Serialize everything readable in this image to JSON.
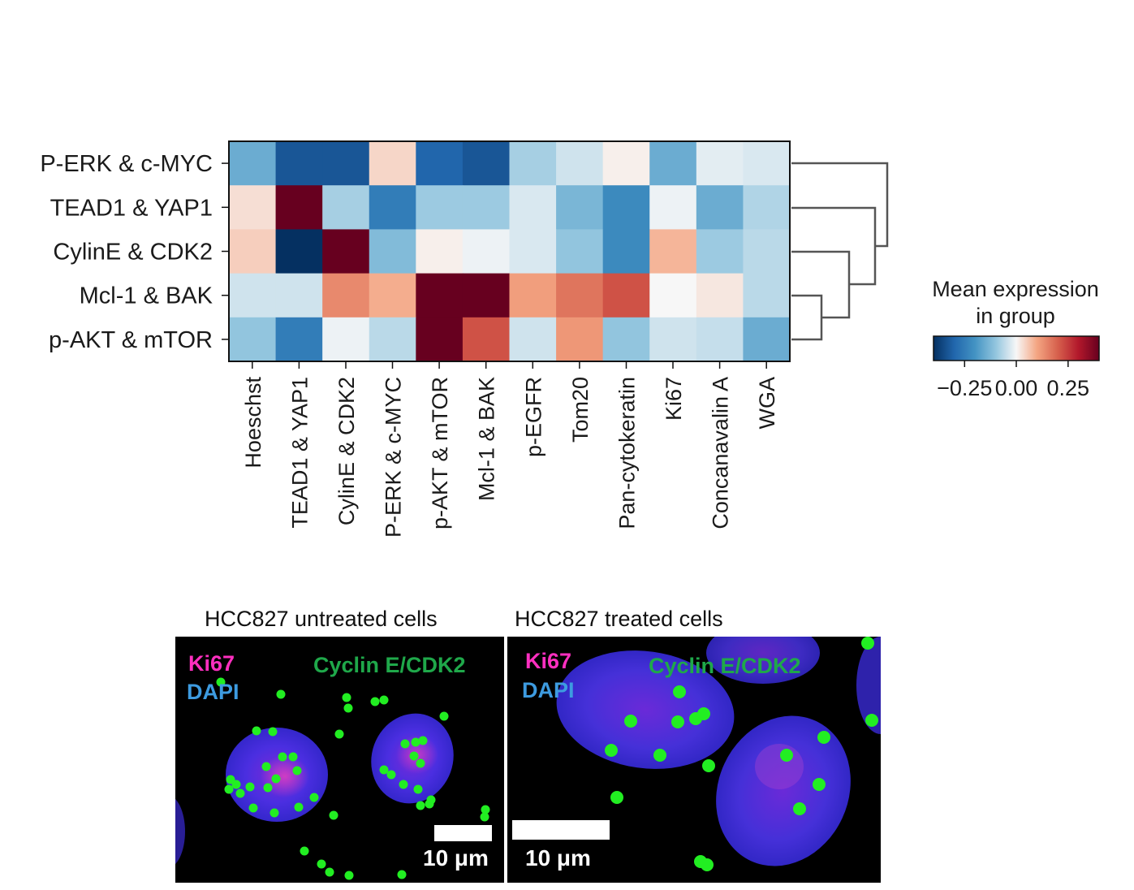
{
  "chart_data": {
    "type": "heatmap",
    "rows": [
      "P-ERK & c-MYC",
      "TEAD1 & YAP1",
      "CylinE & CDK2",
      "Mcl-1 & BAK",
      "p-AKT & mTOR"
    ],
    "columns": [
      "Hoeschst",
      "TEAD1 & YAP1",
      "CylinE & CDK2",
      "P-ERK & c-MYC",
      "p-AKT & mTOR",
      "Mcl-1 & BAK",
      "p-EGFR",
      "Tom20",
      "Pan-cytokeratin",
      "Ki67",
      "Concanavalin A",
      "WGA"
    ],
    "values": [
      [
        -0.15,
        -0.33,
        -0.33,
        0.04,
        -0.3,
        -0.33,
        -0.08,
        -0.04,
        0.01,
        -0.15,
        -0.02,
        -0.03
      ],
      [
        0.03,
        0.4,
        -0.08,
        -0.25,
        -0.09,
        -0.09,
        -0.03,
        -0.13,
        -0.22,
        -0.01,
        -0.15,
        -0.07
      ],
      [
        0.05,
        -0.4,
        0.4,
        -0.12,
        0.01,
        -0.01,
        -0.03,
        -0.1,
        -0.22,
        0.08,
        -0.09,
        -0.06
      ],
      [
        -0.04,
        -0.04,
        0.14,
        0.09,
        0.4,
        0.4,
        0.11,
        0.17,
        0.22,
        0.0,
        0.02,
        -0.06
      ],
      [
        -0.1,
        -0.25,
        -0.01,
        -0.06,
        0.4,
        0.22,
        -0.04,
        0.12,
        -0.1,
        -0.04,
        -0.05,
        -0.15
      ]
    ],
    "colorscale": "RdBu_r",
    "vmin": -0.4,
    "vmax": 0.4,
    "colorbar": {
      "title_line1": "Mean expression",
      "title_line2": "in group",
      "ticks": [
        {
          "value": -0.25,
          "label": "−0.25"
        },
        {
          "value": 0.0,
          "label": "0.00"
        },
        {
          "value": 0.25,
          "label": "0.25"
        }
      ]
    },
    "dendrogram": "right"
  },
  "panels": [
    {
      "title": "HCC827 untreated cells",
      "label_ki67": "Ki67",
      "label_dapi": "DAPI",
      "label_cyclin": "Cyclin E/CDK2",
      "scale_label": "10 μm"
    },
    {
      "title": "HCC827 treated cells",
      "label_ki67": "Ki67",
      "label_dapi": "DAPI",
      "label_cyclin": "Cyclin E/CDK2",
      "scale_label": "10 μm"
    }
  ],
  "colors": {
    "ki67": "#ff2fc0",
    "dapi": "#3d9be0",
    "cyclin": "#1fa84a",
    "dots": "#22ee22",
    "nucleus": "#3a2bd6"
  }
}
